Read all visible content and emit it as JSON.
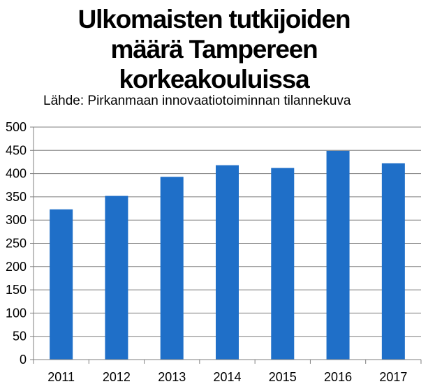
{
  "chart_data": {
    "type": "bar",
    "title_lines": [
      "Ulkomaisten tutkijoiden",
      "määrä Tampereen",
      "korkeakouluissa"
    ],
    "subtitle": "Lähde: Pirkanmaan innovaatiotoiminnan tilannekuva",
    "categories": [
      "2011",
      "2012",
      "2013",
      "2014",
      "2015",
      "2016",
      "2017"
    ],
    "values": [
      323,
      352,
      393,
      418,
      412,
      449,
      422
    ],
    "ylim": [
      0,
      500
    ],
    "yticks": [
      "0",
      "50",
      "100",
      "150",
      "200",
      "250",
      "300",
      "350",
      "400",
      "450",
      "500"
    ],
    "grid": true,
    "legend": "none",
    "bar_color": "#1f6fc8",
    "grid_color": "#7f7f7f"
  }
}
